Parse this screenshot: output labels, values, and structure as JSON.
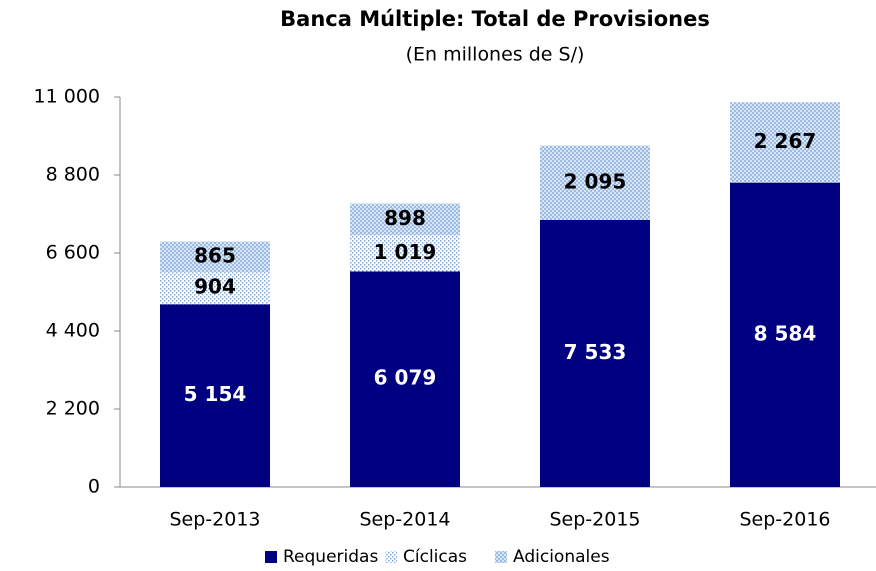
{
  "chart_data": {
    "type": "stacked_bar",
    "title": "Banca Múltiple: Total de Provisiones",
    "subtitle": "(En millones de S/)",
    "categories": [
      "Sep-2013",
      "Sep-2014",
      "Sep-2015",
      "Sep-2016"
    ],
    "series": [
      {
        "name": "Requeridas",
        "color": "#000080",
        "pattern": "solid",
        "label_color": "#ffffff",
        "values": [
          5154,
          6079,
          7533,
          8584
        ],
        "value_labels": [
          "5 154",
          "6 079",
          "7 533",
          "8 584"
        ]
      },
      {
        "name": "Cíclicas",
        "color": "#7fa7d9",
        "pattern": "dots",
        "label_color": "#000000",
        "values": [
          904,
          1019,
          null,
          null
        ],
        "value_labels": [
          "904",
          "1 019",
          null,
          null
        ]
      },
      {
        "name": "Adicionales",
        "color": "#9bbbe3",
        "pattern": "checker",
        "label_color": "#000000",
        "values": [
          865,
          898,
          2095,
          2267
        ],
        "value_labels": [
          "865",
          "898",
          "2 095",
          "2 267"
        ]
      }
    ],
    "ylim": [
      0,
      11000
    ],
    "yticks": [
      0,
      {
        "value": 2200,
        "label": "2 200"
      },
      {
        "value": 4400,
        "label": "4 400"
      },
      {
        "value": 6600,
        "label": "6 600"
      },
      {
        "value": 8800,
        "label": "8 800"
      },
      {
        "value": 11000,
        "label": "11 000"
      }
    ],
    "legend": "bottom"
  }
}
